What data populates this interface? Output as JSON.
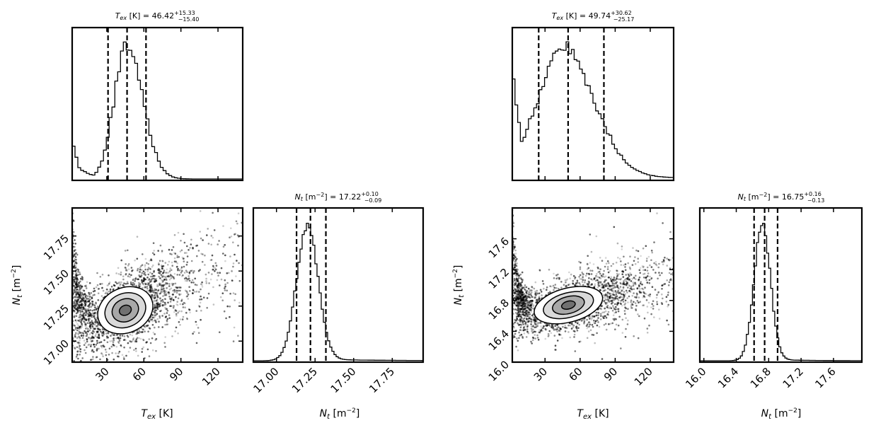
{
  "chart_data": [
    {
      "type": "corner",
      "panel": "left",
      "parameters": [
        "T_ex",
        "N_t"
      ],
      "tex": {
        "title_var": "T",
        "title_sub": "ex",
        "title_unit": " [K] = ",
        "title_value": "46.42",
        "title_sup": "+15.33",
        "title_inf": "−15.40",
        "xlabel_var": "T",
        "xlabel_sub": "ex",
        "xlabel_unit": " [K]",
        "range": [
          2,
          140
        ],
        "ticks": [
          "30",
          "60",
          "90",
          "120"
        ],
        "tick_values": [
          30,
          60,
          90,
          120
        ],
        "quantiles": [
          31.02,
          46.42,
          61.75
        ],
        "histogram": {
          "peak": 46,
          "sigma_left": 10,
          "sigma_right": 13,
          "left_spike": {
            "x_end": 8,
            "level": 0.2
          },
          "floor": 0.12,
          "floor_decay": 12
        }
      },
      "nt": {
        "title_var": "N",
        "title_sub": "t",
        "title_unit": " [m",
        "title_exp": "−2",
        "title_eq": "] = ",
        "title_value": "17.22",
        "title_sup": "+0.10",
        "title_inf": "−0.09",
        "xlabel_var": "N",
        "xlabel_sub": "t",
        "xlabel_unit": " [m",
        "xlabel_exp": "−2",
        "xlabel_end": "]",
        "range": [
          16.85,
          17.95
        ],
        "ticks": [
          "17.00",
          "17.25",
          "17.50",
          "17.75"
        ],
        "tick_values": [
          17.0,
          17.25,
          17.5,
          17.75
        ],
        "quantiles": [
          17.13,
          17.22,
          17.32
        ],
        "histogram": {
          "peak": 17.2,
          "sigma": 0.07
        }
      },
      "joint": {
        "xrange": [
          2,
          140
        ],
        "yrange": [
          16.85,
          17.95
        ],
        "ylabel_var": "N",
        "ylabel_sub": "t",
        "ylabel_unit": " [m",
        "ylabel_exp": "−2",
        "ylabel_end": "]",
        "yticks": [
          "17.00",
          "17.25",
          "17.50",
          "17.75"
        ],
        "ytick_values": [
          17.0,
          17.25,
          17.5,
          17.75
        ],
        "center": [
          45,
          17.22
        ],
        "contour_axes": [
          [
            23,
            0.16
          ],
          [
            17,
            0.12
          ],
          [
            11,
            0.08
          ],
          [
            5,
            0.035
          ]
        ],
        "slope": 0.004
      }
    },
    {
      "type": "corner",
      "panel": "right",
      "parameters": [
        "T_ex",
        "N_t"
      ],
      "tex": {
        "title_var": "T",
        "title_sub": "ex",
        "title_unit": " [K] = ",
        "title_value": "49.74",
        "title_sup": "+30.62",
        "title_inf": "−25.17",
        "xlabel_var": "T",
        "xlabel_sub": "ex",
        "xlabel_unit": " [K]",
        "range": [
          2,
          140
        ],
        "ticks": [
          "30",
          "60",
          "90",
          "120"
        ],
        "tick_values": [
          30,
          60,
          90,
          120
        ],
        "quantiles": [
          24.57,
          49.74,
          80.36
        ],
        "histogram": {
          "peak": 45,
          "sigma_left": 22,
          "sigma_right": 26,
          "left_spike": {
            "x_end": 10,
            "level": 0.55
          },
          "floor": 0.45,
          "floor_decay": 6,
          "tail": 0.05
        }
      },
      "nt": {
        "title_var": "N",
        "title_sub": "t",
        "title_unit": " [m",
        "title_exp": "−2",
        "title_eq": "] = ",
        "title_value": "16.75",
        "title_sup": "+0.16",
        "title_inf": "−0.13",
        "xlabel_var": "N",
        "xlabel_sub": "t",
        "xlabel_unit": " [m",
        "xlabel_exp": "−2",
        "xlabel_end": "]",
        "range": [
          15.95,
          17.95
        ],
        "ticks": [
          "16.0",
          "16.4",
          "16.8",
          "17.2",
          "17.6"
        ],
        "tick_values": [
          16.0,
          16.4,
          16.8,
          17.2,
          17.6
        ],
        "quantiles": [
          16.62,
          16.75,
          16.91
        ],
        "histogram": {
          "peak": 16.72,
          "sigma": 0.1
        }
      },
      "joint": {
        "xrange": [
          2,
          140
        ],
        "yrange": [
          16.0,
          18.0
        ],
        "ylabel_var": "N",
        "ylabel_sub": "t",
        "ylabel_unit": " [m",
        "ylabel_exp": "−2",
        "ylabel_end": "]",
        "yticks": [
          "16.0",
          "16.4",
          "16.8",
          "17.2",
          "17.6"
        ],
        "ytick_values": [
          16.0,
          16.4,
          16.8,
          17.2,
          17.6
        ],
        "center": [
          50,
          16.74
        ],
        "contour_axes": [
          [
            30,
            0.22
          ],
          [
            22,
            0.16
          ],
          [
            14,
            0.11
          ],
          [
            6,
            0.05
          ]
        ],
        "slope": 0.004
      }
    }
  ]
}
